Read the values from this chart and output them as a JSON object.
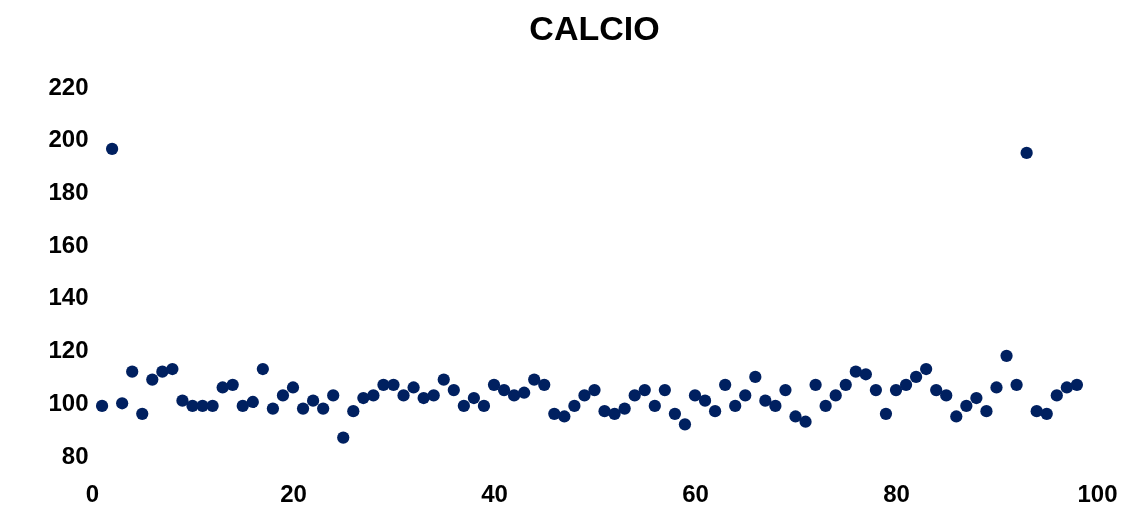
{
  "chart_data": {
    "type": "scatter",
    "title": "CALCIO",
    "x": [
      1,
      2,
      3,
      4,
      5,
      6,
      7,
      8,
      9,
      10,
      11,
      12,
      13,
      14,
      15,
      16,
      17,
      18,
      19,
      20,
      21,
      22,
      23,
      24,
      25,
      26,
      27,
      28,
      29,
      30,
      31,
      32,
      33,
      34,
      35,
      36,
      37,
      38,
      39,
      40,
      41,
      42,
      43,
      44,
      45,
      46,
      47,
      48,
      49,
      50,
      51,
      52,
      53,
      54,
      55,
      56,
      57,
      58,
      59,
      60,
      61,
      62,
      63,
      64,
      65,
      66,
      67,
      68,
      69,
      70,
      71,
      72,
      73,
      74,
      75,
      76,
      77,
      78,
      79,
      80,
      81,
      82,
      83,
      84,
      85,
      86,
      87,
      88,
      89,
      90,
      91,
      92,
      93,
      94,
      95,
      96,
      97,
      98
    ],
    "series": [
      {
        "color": "#002060",
        "values": [
          99,
          196.5,
          100,
          112,
          96,
          109,
          112,
          113,
          101,
          99,
          99,
          99,
          106,
          107,
          99,
          100.5,
          113,
          98,
          103,
          106,
          98,
          101,
          98,
          103,
          87,
          97,
          102,
          103,
          107,
          107,
          103,
          106,
          102,
          103,
          109,
          105,
          99,
          102,
          99,
          107,
          105,
          103,
          104,
          109,
          107,
          96,
          95,
          99,
          103,
          105,
          97,
          96,
          98,
          103,
          105,
          99,
          105,
          96,
          92,
          103,
          101,
          97,
          107,
          99,
          103,
          110,
          101,
          99,
          105,
          95,
          93,
          107,
          99,
          103,
          107,
          112,
          111,
          105,
          96,
          105,
          107,
          110,
          113,
          105,
          103,
          95,
          99,
          102,
          97,
          106,
          118,
          107,
          195,
          97,
          96,
          103,
          106,
          107
        ]
      }
    ],
    "xlim": [
      0,
      100
    ],
    "xticks": [
      0,
      20,
      40,
      60,
      80,
      100
    ],
    "ylim": [
      80,
      220
    ],
    "yticks": [
      80,
      100,
      120,
      140,
      160,
      180,
      200,
      220
    ],
    "marker": "circle",
    "grid": false,
    "legend": false
  }
}
